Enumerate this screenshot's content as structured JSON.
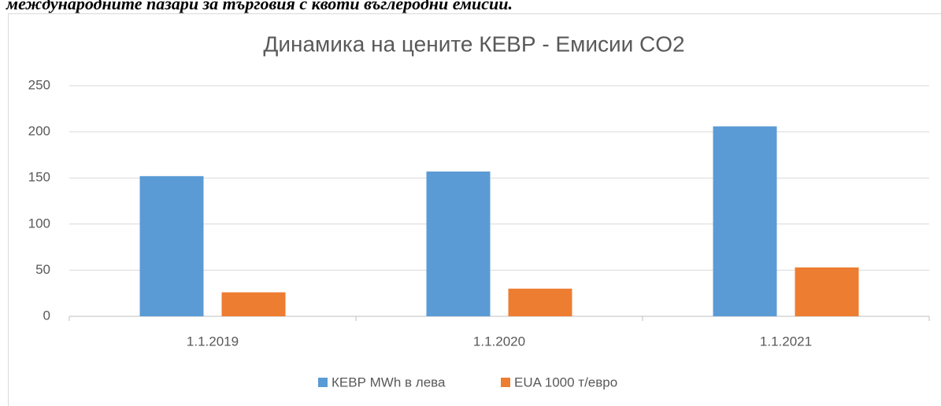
{
  "caption": "международните пазари за търговия с квоти въглеродни емисии.",
  "chart_data": {
    "type": "bar",
    "title": "Динамика на цените КЕВР - Емисии CO2",
    "categories": [
      "1.1.2019",
      "1.1.2020",
      "1.1.2021"
    ],
    "series": [
      {
        "name": "КЕВР MWh в лева",
        "color": "#5b9bd5",
        "values": [
          152,
          157,
          206
        ]
      },
      {
        "name": "EUA 1000 т/евро",
        "color": "#ed7d31",
        "values": [
          26,
          30,
          53
        ]
      }
    ],
    "ylim": [
      0,
      250
    ],
    "yticks": [
      0,
      50,
      100,
      150,
      200,
      250
    ],
    "grid": true,
    "legend": "bottom"
  }
}
